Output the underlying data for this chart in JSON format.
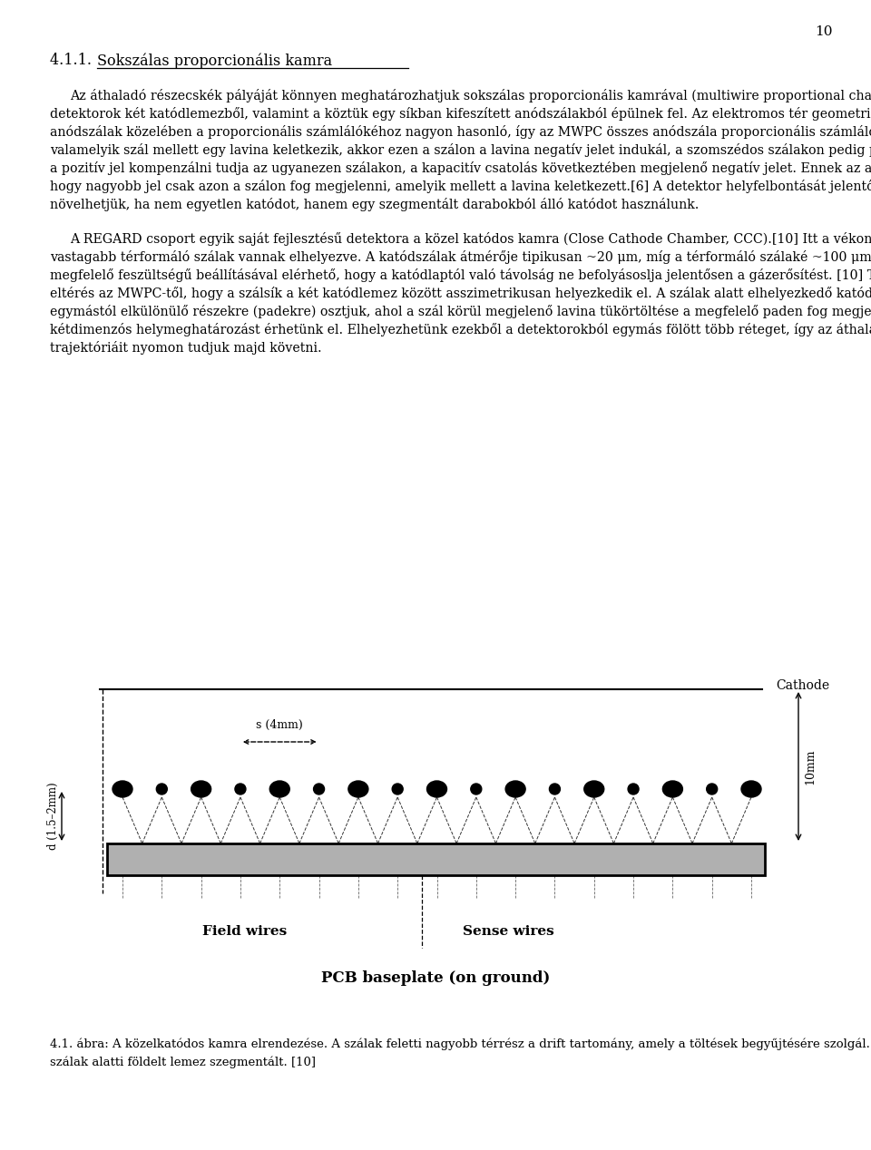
{
  "page_number": "10",
  "title": "4.1.1.",
  "title_underlined": "Sokszálas proporcionális kamra",
  "paragraph1": "Az áthaladó részecskék pályáját könnyen meghatározhatjuk sokszálas proporcionális kamrával (multiwire proportional chamber, MWPC).[9] Ezek a detektorok két katódlemezből, valamint a köztük egy síkban kifeszített anódszálakból épülnek fel. Az elektromos tér geometriája az anódszálak közelében a proporcionális számlálókéhoz nagyon hasonló, így az MWPC összes anódszála proporcionális számlálóként működik. Ha valamelyik szál mellett egy lavina keletkezik, akkor ezen a szálon a lavina negatív jelet indukál, a szomszédos szálakon pedig pozitívat. Ez a pozitív jel kompenzálni tudja az ugyanezen szálakon, a kapacitív csatolás következtében megjelenő negatív jelet. Ennek az az eredménye, hogy nagyobb jel csak azon a szálon fog megjelenni, amelyik mellett a lavina keletkezett.[6] A detektor helyfelbontását jelentősen növelhetjük, ha nem egyetlen katódot, hanem egy szegmentált darabokból álló katódot használunk.",
  "paragraph2": "A REGARD csoport egyik saját fejlesztésű detektora a közel katódos kamra (Close Cathode Chamber, CCC).[10] Itt a vékony anódszálak között vastagabb térformáló szálak vannak elhelyezve. A katódszálak átmérője tipikusan ~20 μm, míg a térformáló szálaké ~100 μm. A kétféle szál megfelelő feszültségű beállításával elérhető, hogy a katódlaptól való távolság ne befolyásoslja jelentősen a gázerősítést. [10] További eltérés az MWPC-től, hogy a szálsík a két katódlemez között asszimetrikusan helyezkedik el. A szálak alatt elhelyezkedő katódot keskeny, egymástól elkülönülő részekre (padekre) osztjuk, ahol a szál körül megjelenő lavina tükörtöltése a megfelelő paden fog megjelenni, ezáltal kétdimenzós helymeghatározást érhetünk el. Elhelyezhetünk ezekből a detektorokból egymás fölött több réteget, így az áthaladó részecskék trajektóriáit nyomon tudjuk majd követni.",
  "caption_bold": "4.1. ábra:",
  "caption_rest": " A közelkatódos kamra elrendezése. A szálak feletti nagyobb térrész a drift tartomány, amely a töltések begyűjtésére szolgál. A szálak alatti földelt lemez szegmentált. [10]",
  "cathode_label": "Cathode",
  "s_label": "s (4mm)",
  "d_label": "d (1.5–2mm)",
  "height_label": "10mm",
  "field_wires_label": "Field wires",
  "sense_wires_label": "Sense wires",
  "pcb_label": "PCB baseplate (on ground)"
}
